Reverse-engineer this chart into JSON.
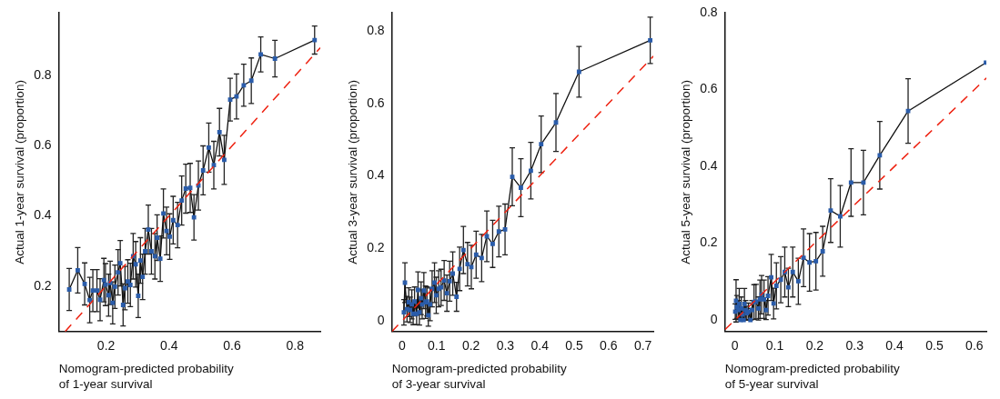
{
  "chart_data": [
    {
      "type": "line",
      "xlabel": "Nomogram-predicted probability\nof 1-year survival",
      "ylabel": "Actual 1-year survival (proportion)",
      "xlim": [
        0.05,
        0.88
      ],
      "ylim": [
        0.07,
        0.98
      ],
      "xticks": [
        0.2,
        0.4,
        0.6,
        0.8
      ],
      "yticks": [
        0.2,
        0.4,
        0.6,
        0.8
      ],
      "grid": false,
      "legend": false,
      "series": [
        {
          "type": "line",
          "color": "#2a5caa",
          "marker": "square",
          "line_style": "solid",
          "x": [
            0.083,
            0.11,
            0.132,
            0.148,
            0.158,
            0.171,
            0.181,
            0.193,
            0.198,
            0.208,
            0.213,
            0.221,
            0.228,
            0.238,
            0.245,
            0.254,
            0.26,
            0.269,
            0.277,
            0.286,
            0.294,
            0.302,
            0.309,
            0.316,
            0.324,
            0.334,
            0.344,
            0.355,
            0.362,
            0.372,
            0.382,
            0.392,
            0.402,
            0.413,
            0.427,
            0.44,
            0.453,
            0.467,
            0.479,
            0.493,
            0.508,
            0.526,
            0.542,
            0.56,
            0.575,
            0.594,
            0.614,
            0.637,
            0.661,
            0.691,
            0.736,
            0.862
          ],
          "values": [
            0.19,
            0.245,
            0.206,
            0.16,
            0.187,
            0.187,
            0.161,
            0.217,
            0.204,
            0.174,
            0.209,
            0.152,
            0.198,
            0.239,
            0.265,
            0.146,
            0.194,
            0.213,
            0.203,
            0.285,
            0.262,
            0.172,
            0.273,
            0.226,
            0.299,
            0.361,
            0.299,
            0.285,
            0.338,
            0.278,
            0.407,
            0.357,
            0.341,
            0.388,
            0.374,
            0.444,
            0.478,
            0.48,
            0.396,
            0.487,
            0.53,
            0.595,
            0.545,
            0.639,
            0.56,
            0.732,
            0.741,
            0.773,
            0.786,
            0.861,
            0.849,
            0.902
          ],
          "errors": [
            0.06,
            0.065,
            0.06,
            0.065,
            0.06,
            0.06,
            0.06,
            0.062,
            0.06,
            0.06,
            0.062,
            0.06,
            0.062,
            0.065,
            0.065,
            0.06,
            0.062,
            0.062,
            0.062,
            0.065,
            0.065,
            0.062,
            0.065,
            0.065,
            0.065,
            0.07,
            0.065,
            0.065,
            0.065,
            0.065,
            0.07,
            0.068,
            0.065,
            0.068,
            0.065,
            0.07,
            0.07,
            0.07,
            0.065,
            0.07,
            0.07,
            0.07,
            0.068,
            0.068,
            0.07,
            0.061,
            0.064,
            0.06,
            0.065,
            0.05,
            0.052,
            0.04
          ]
        },
        {
          "type": "line",
          "color": "#ee2211",
          "marker": "none",
          "line_style": "dashed",
          "x": [
            0.07,
            0.88
          ],
          "values": [
            0.07,
            0.88
          ]
        }
      ]
    },
    {
      "type": "line",
      "xlabel": "Nomogram-predicted probability\nof 3-year survival",
      "ylabel": "Actual 3-year survival (proportion)",
      "xlim": [
        -0.03,
        0.73
      ],
      "ylim": [
        -0.03,
        0.85
      ],
      "xticks": [
        0,
        0.1,
        0.2,
        0.3,
        0.4,
        0.5,
        0.6,
        0.7
      ],
      "yticks": [
        0,
        0.2,
        0.4,
        0.6,
        0.8
      ],
      "grid": false,
      "legend": false,
      "series": [
        {
          "type": "line",
          "color": "#2a5caa",
          "marker": "square",
          "line_style": "solid",
          "x": [
            0.005,
            0.008,
            0.014,
            0.019,
            0.023,
            0.028,
            0.032,
            0.036,
            0.042,
            0.046,
            0.05,
            0.055,
            0.058,
            0.063,
            0.068,
            0.072,
            0.076,
            0.081,
            0.087,
            0.094,
            0.099,
            0.106,
            0.113,
            0.122,
            0.13,
            0.138,
            0.147,
            0.158,
            0.167,
            0.178,
            0.19,
            0.201,
            0.215,
            0.231,
            0.246,
            0.263,
            0.281,
            0.299,
            0.32,
            0.345,
            0.374,
            0.404,
            0.447,
            0.514,
            0.721
          ],
          "values": [
            0.023,
            0.105,
            0.032,
            0.051,
            0.03,
            0.045,
            0.019,
            0.053,
            0.019,
            0.085,
            0.023,
            0.062,
            0.045,
            0.083,
            0.051,
            0.053,
            0.015,
            0.045,
            0.088,
            0.105,
            0.07,
            0.088,
            0.092,
            0.111,
            0.076,
            0.109,
            0.13,
            0.066,
            0.143,
            0.195,
            0.156,
            0.148,
            0.182,
            0.173,
            0.233,
            0.212,
            0.246,
            0.252,
            0.397,
            0.367,
            0.414,
            0.487,
            0.547,
            0.687,
            0.774
          ],
          "errors": [
            0.035,
            0.055,
            0.035,
            0.04,
            0.035,
            0.04,
            0.03,
            0.04,
            0.03,
            0.05,
            0.035,
            0.045,
            0.04,
            0.05,
            0.045,
            0.04,
            0.03,
            0.045,
            0.05,
            0.055,
            0.05,
            0.05,
            0.05,
            0.055,
            0.05,
            0.055,
            0.06,
            0.04,
            0.06,
            0.065,
            0.06,
            0.06,
            0.065,
            0.065,
            0.07,
            0.065,
            0.07,
            0.07,
            0.08,
            0.08,
            0.078,
            0.078,
            0.08,
            0.07,
            0.064
          ]
        },
        {
          "type": "line",
          "color": "#ee2211",
          "marker": "none",
          "line_style": "dashed",
          "x": [
            -0.03,
            0.73
          ],
          "values": [
            -0.03,
            0.73
          ]
        }
      ]
    },
    {
      "type": "line",
      "xlabel": "Nomogram-predicted probability\nof 5-year survival",
      "ylabel": "Actual 5-year survival (proportion)",
      "xlim": [
        -0.025,
        0.63
      ],
      "ylim": [
        -0.03,
        0.8
      ],
      "xticks": [
        0,
        0.1,
        0.2,
        0.3,
        0.4,
        0.5,
        0.6
      ],
      "yticks": [
        0,
        0.2,
        0.4,
        0.6,
        0.8
      ],
      "grid": false,
      "legend": false,
      "series": [
        {
          "type": "line",
          "color": "#2a5caa",
          "marker": "square",
          "line_style": "solid",
          "x": [
            0.001,
            0.003,
            0.005,
            0.009,
            0.011,
            0.014,
            0.016,
            0.019,
            0.022,
            0.024,
            0.027,
            0.03,
            0.034,
            0.039,
            0.043,
            0.048,
            0.053,
            0.059,
            0.063,
            0.067,
            0.073,
            0.078,
            0.083,
            0.091,
            0.097,
            0.104,
            0.115,
            0.125,
            0.134,
            0.145,
            0.159,
            0.172,
            0.187,
            0.203,
            0.22,
            0.24,
            0.264,
            0.291,
            0.322,
            0.363,
            0.434,
            0.629
          ],
          "values": [
            0.022,
            0.05,
            0.034,
            0.026,
            0.042,
            0.0,
            0.03,
            0.014,
            0.0,
            0.042,
            0.026,
            0.018,
            0.022,
            0.0,
            0.026,
            0.047,
            0.048,
            0.03,
            0.054,
            0.066,
            0.054,
            0.026,
            0.063,
            0.111,
            0.043,
            0.089,
            0.105,
            0.125,
            0.085,
            0.125,
            0.101,
            0.162,
            0.15,
            0.153,
            0.179,
            0.285,
            0.27,
            0.358,
            0.358,
            0.429,
            0.544,
            0.67
          ],
          "errors": [
            0.02,
            0.055,
            0.03,
            0.025,
            0.04,
            null,
            0.03,
            0.014,
            [
              0,
              0.03
            ],
            0.04,
            0.025,
            0.018,
            0.022,
            [
              0,
              0.03
            ],
            0.025,
            0.045,
            0.045,
            0.03,
            0.05,
            0.05,
            0.05,
            0.025,
            0.05,
            0.06,
            0.04,
            0.06,
            0.06,
            0.065,
            0.05,
            0.065,
            0.06,
            0.075,
            0.075,
            0.075,
            0.065,
            0.083,
            0.08,
            0.088,
            0.084,
            0.088,
            0.084,
            null
          ]
        },
        {
          "type": "line",
          "color": "#ee2211",
          "marker": "none",
          "line_style": "dashed",
          "x": [
            -0.025,
            0.63
          ],
          "values": [
            -0.025,
            0.63
          ]
        }
      ]
    }
  ]
}
